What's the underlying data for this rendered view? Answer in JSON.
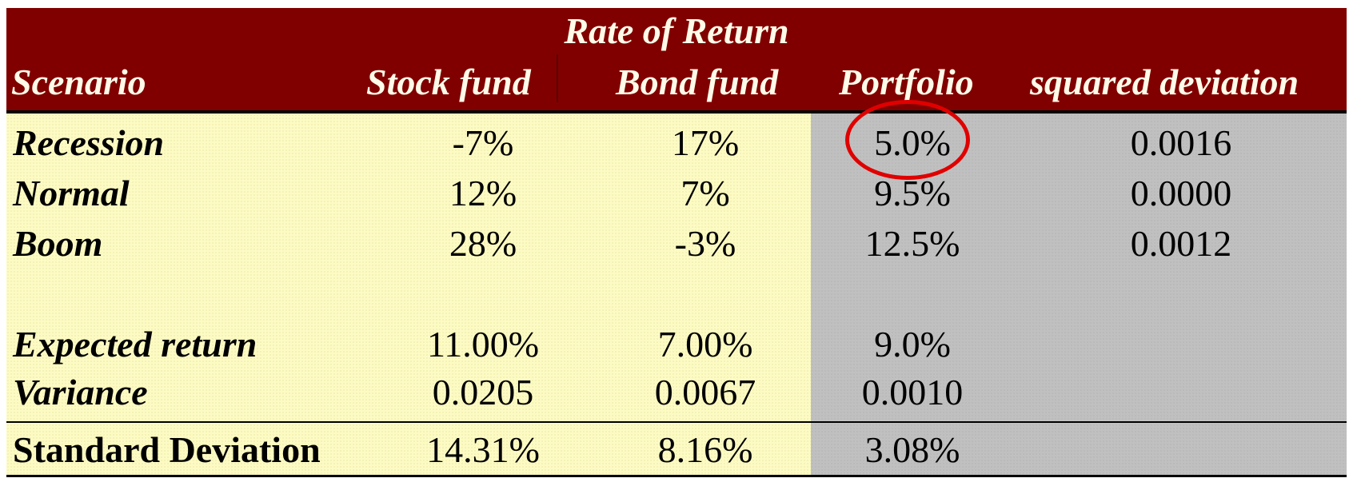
{
  "header": {
    "group_title": "Rate of Return",
    "col_scenario": "Scenario",
    "col_stock": "Stock fund",
    "col_bond": "Bond fund",
    "col_portfolio": "Portfolio",
    "col_sqdev": "squared deviation"
  },
  "colors": {
    "header_bg": "#800000",
    "header_text": "#fffbe8",
    "fund_area": "#fdfbc4",
    "portfolio_area": "#c0c0c0",
    "highlight_ring": "#e00000"
  },
  "rows": [
    {
      "label": "Recession",
      "stock": "-7%",
      "bond": "17%",
      "portfolio": "5.0%",
      "sqdev": "0.0016"
    },
    {
      "label": "Normal",
      "stock": "12%",
      "bond": "7%",
      "portfolio": "9.5%",
      "sqdev": "0.0000"
    },
    {
      "label": "Boom",
      "stock": "28%",
      "bond": "-3%",
      "portfolio": "12.5%",
      "sqdev": "0.0012"
    }
  ],
  "summary": [
    {
      "label": "Expected return",
      "stock": "11.00%",
      "bond": "7.00%",
      "portfolio": "9.0%"
    },
    {
      "label": "Variance",
      "stock": "0.0205",
      "bond": "0.0067",
      "portfolio": "0.0010"
    }
  ],
  "std_dev": {
    "label": "Standard Deviation",
    "stock": "14.31%",
    "bond": "8.16%",
    "portfolio": "3.08%"
  }
}
